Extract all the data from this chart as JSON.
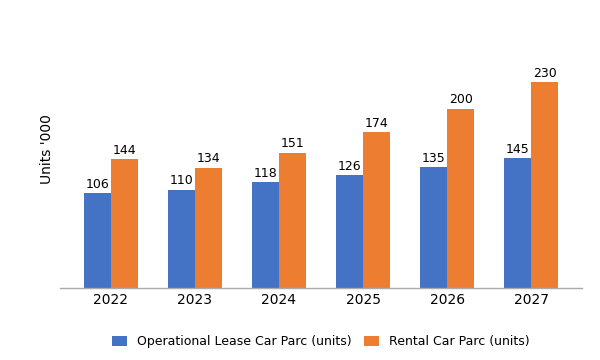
{
  "years": [
    "2022",
    "2023",
    "2024",
    "2025",
    "2026",
    "2027"
  ],
  "operational_lease": [
    106,
    110,
    118,
    126,
    135,
    145
  ],
  "rental_car": [
    144,
    134,
    151,
    174,
    200,
    230
  ],
  "bar_color_lease": "#4472C4",
  "bar_color_rental": "#ED7D31",
  "ylabel": "Units '000",
  "legend_lease": "Operational Lease Car Parc (units)",
  "legend_rental": "Rental Car Parc (units)",
  "bar_width": 0.32,
  "ylim": [
    0,
    310
  ],
  "background_color": "#FFFFFF",
  "label_fontsize": 9,
  "tick_fontsize": 10,
  "legend_fontsize": 9,
  "spine_color": "#AAAAAA"
}
